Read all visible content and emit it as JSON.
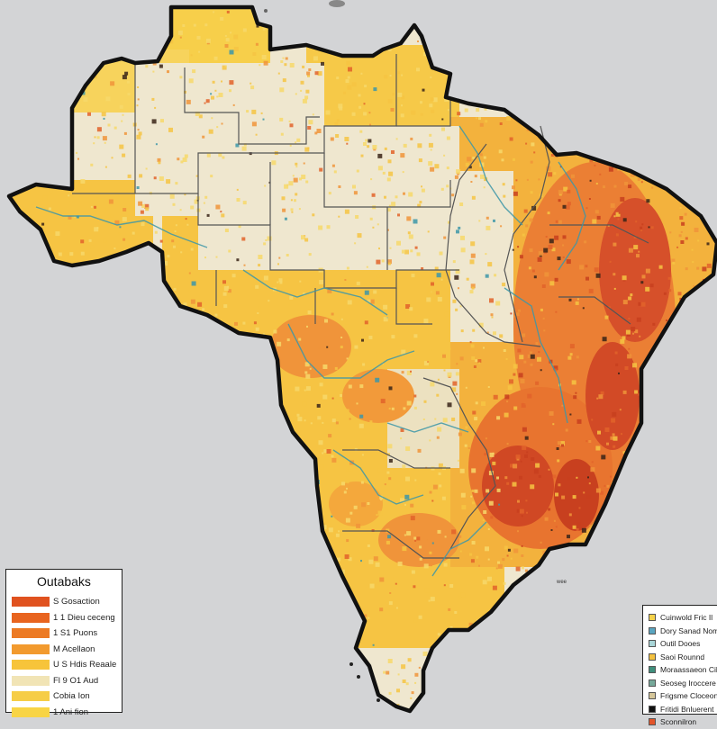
{
  "colors": {
    "background": "#d3d4d6",
    "land_base": "#efe7cf",
    "border": "#111111",
    "river": "#3d97a8",
    "yellow_light": "#f7d86a",
    "yellow": "#f6c443",
    "orange": "#f0943a",
    "orange_dark": "#e2632a",
    "red": "#c8401f",
    "dark": "#3a2418"
  },
  "legend_left": {
    "title": "Outabaks",
    "items": [
      {
        "label": "S Gosaction",
        "color": "#e0521f"
      },
      {
        "label": "1 1 Dieu ceceng",
        "color": "#e8641f"
      },
      {
        "label": "1 S1 Puons",
        "color": "#ec7a24"
      },
      {
        "label": "M Acellaon",
        "color": "#f29a2e"
      },
      {
        "label": "U S Hdis Reaaleneon",
        "color": "#f7c43a"
      },
      {
        "label": "Fl 9 O1 Aud",
        "color": "#f1e4b5"
      },
      {
        "label": "Cobia Ion",
        "color": "#f6cd47"
      },
      {
        "label": "1 Ani fion",
        "color": "#f8d445"
      }
    ]
  },
  "legend_right": {
    "items": [
      {
        "label": "Cuinwold Fric Il",
        "color": "#f5d24a"
      },
      {
        "label": "Dory Sanad Nom",
        "color": "#5aa5c0"
      },
      {
        "label": "Outil Dooes",
        "color": "#a9d6d8"
      },
      {
        "label": "Saoi Rounnd",
        "color": "#f3c13f"
      },
      {
        "label": "Moraassaeon Cil",
        "color": "#3f8f7c"
      },
      {
        "label": "Seoseg Iroccere",
        "color": "#76a99a"
      },
      {
        "label": "Frigsme Cloceon",
        "color": "#d6c79a"
      },
      {
        "label": "Fritidi Bnluerent",
        "color": "#111111"
      },
      {
        "label": "Sconnilron",
        "color": "#e2542a"
      }
    ]
  },
  "note": "wee"
}
